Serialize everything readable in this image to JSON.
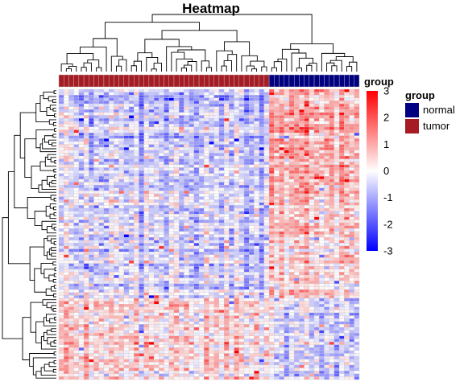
{
  "chart_data": {
    "type": "heatmap",
    "title": "Heatmap",
    "n_columns": 60,
    "n_rows": 100,
    "column_groups": [
      {
        "name": "tumor",
        "count": 42
      },
      {
        "name": "normal",
        "count": 18
      }
    ],
    "colorbar": {
      "title": "group",
      "min": -3,
      "max": 3,
      "ticks": [
        3,
        2,
        1,
        0,
        -1,
        -2,
        -3
      ],
      "colors": {
        "low": "#0000FF",
        "mid": "#FFFFFF",
        "high": "#FF0000"
      }
    },
    "legend": {
      "title": "group",
      "placement": "right",
      "items": [
        {
          "label": "normal",
          "color": "#000080"
        },
        {
          "label": "tumor",
          "color": "#A51C24"
        }
      ]
    },
    "row_blocks_from_top": [
      {
        "rows": 36,
        "tumor_mean": -0.55,
        "normal_mean": 1.05
      },
      {
        "rows": 14,
        "tumor_mean": -0.35,
        "normal_mean": 0.75
      },
      {
        "rows": 22,
        "tumor_mean": -0.4,
        "normal_mean": 0.55
      },
      {
        "rows": 28,
        "tumor_mean": 0.45,
        "normal_mean": -0.5
      }
    ],
    "cell_noise": 0.9,
    "cell_border_color": "#C8C8C8"
  }
}
